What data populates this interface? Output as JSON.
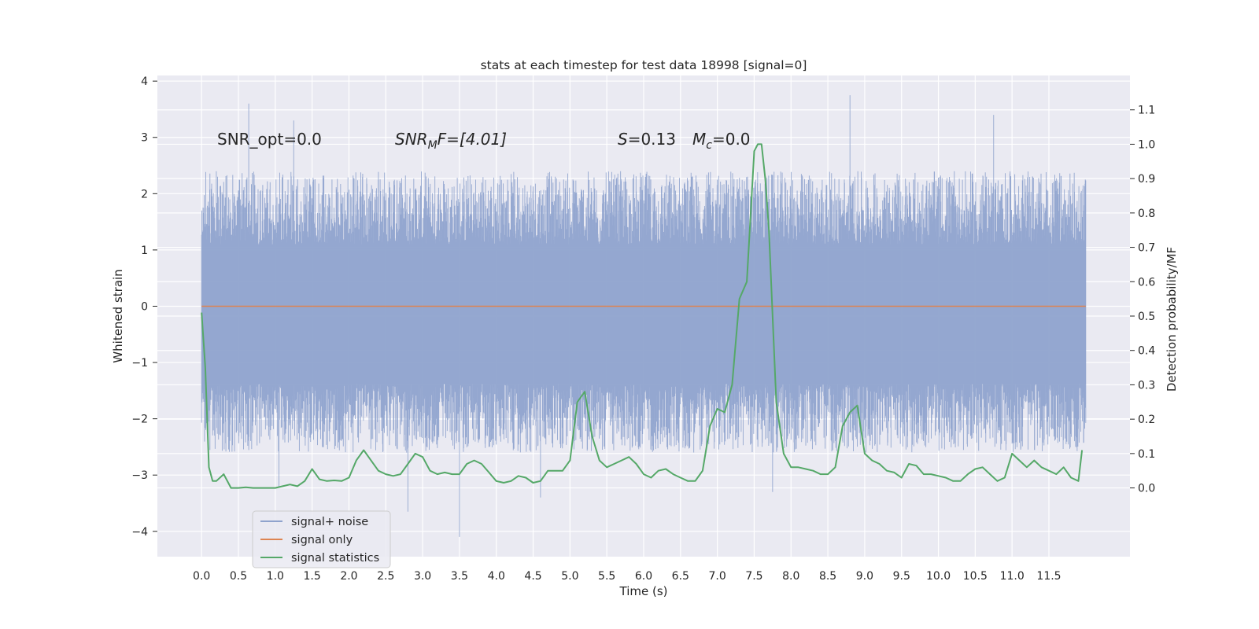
{
  "chart_data": {
    "type": "line",
    "title": "stats at each timestep for test data 18998 [signal=0]",
    "xlabel": "Time (s)",
    "ylabel": "Whitened strain",
    "y2label": "Detection probability/MF",
    "xlim": [
      -0.6,
      12.6
    ],
    "ylim": [
      -4.45,
      4.1
    ],
    "y2lim": [
      -0.2,
      1.2
    ],
    "grid": true,
    "legend_position": "lower-left",
    "x_ticks": [
      "0.0",
      "0.5",
      "1.0",
      "1.5",
      "2.0",
      "2.5",
      "3.0",
      "3.5",
      "4.0",
      "4.5",
      "5.0",
      "5.5",
      "6.0",
      "6.5",
      "7.0",
      "7.5",
      "8.0",
      "8.5",
      "9.0",
      "9.5",
      "10.0",
      "10.5",
      "11.0",
      "11.5"
    ],
    "y_ticks": [
      "4",
      "3",
      "2",
      "1",
      "0",
      "−1",
      "−2",
      "−3",
      "−4"
    ],
    "y2_ticks": [
      "1.1",
      "1.0",
      "0.9",
      "0.8",
      "0.7",
      "0.6",
      "0.5",
      "0.4",
      "0.3",
      "0.2",
      "0.1",
      "0.0"
    ],
    "annotations": {
      "snr_opt": "SNR_opt=0.0",
      "snr_mf_main": "SNR",
      "snr_mf_sub": "M",
      "snr_mf_rest": "F=[4.01]",
      "s_main": "S",
      "s_rest": "=0.13",
      "mc_main": "M",
      "mc_sub": "c",
      "mc_rest": "=0.0"
    },
    "series": [
      {
        "name": "signal+ noise",
        "color": "#8fa3cd",
        "axis": "left",
        "x_range": [
          0.0,
          12.0
        ],
        "envelope": {
          "core_min": -1.38,
          "core_max": 1.1,
          "typical_min": -2.6,
          "typical_max": 2.4
        },
        "peaks": [
          [
            0.64,
            3.6
          ],
          [
            1.25,
            3.3
          ],
          [
            2.8,
            -3.65
          ],
          [
            3.5,
            -4.1
          ],
          [
            8.8,
            3.75
          ],
          [
            7.75,
            -3.3
          ],
          [
            10.75,
            3.4
          ],
          [
            4.6,
            -3.4
          ],
          [
            1.05,
            -3.2
          ]
        ]
      },
      {
        "name": "signal only",
        "color": "#dd8452",
        "axis": "left",
        "x": [
          0.0,
          12.0
        ],
        "y": [
          0.0,
          0.0
        ]
      },
      {
        "name": "signal statistics",
        "color": "#55a868",
        "axis": "right",
        "x": [
          0.0,
          0.05,
          0.1,
          0.15,
          0.2,
          0.3,
          0.4,
          0.5,
          0.6,
          0.7,
          0.8,
          0.9,
          1.0,
          1.1,
          1.2,
          1.3,
          1.4,
          1.5,
          1.6,
          1.7,
          1.8,
          1.9,
          2.0,
          2.1,
          2.2,
          2.3,
          2.4,
          2.5,
          2.6,
          2.7,
          2.8,
          2.9,
          3.0,
          3.1,
          3.2,
          3.3,
          3.4,
          3.5,
          3.6,
          3.7,
          3.8,
          3.9,
          4.0,
          4.1,
          4.2,
          4.3,
          4.4,
          4.5,
          4.6,
          4.7,
          4.8,
          4.9,
          5.0,
          5.1,
          5.2,
          5.3,
          5.4,
          5.5,
          5.6,
          5.7,
          5.8,
          5.9,
          6.0,
          6.1,
          6.2,
          6.3,
          6.4,
          6.5,
          6.6,
          6.7,
          6.8,
          6.9,
          7.0,
          7.1,
          7.2,
          7.3,
          7.4,
          7.5,
          7.55,
          7.6,
          7.65,
          7.7,
          7.8,
          7.9,
          8.0,
          8.1,
          8.2,
          8.3,
          8.4,
          8.5,
          8.6,
          8.7,
          8.8,
          8.9,
          9.0,
          9.1,
          9.2,
          9.3,
          9.4,
          9.5,
          9.6,
          9.7,
          9.8,
          9.9,
          10.0,
          10.1,
          10.2,
          10.3,
          10.4,
          10.5,
          10.6,
          10.7,
          10.8,
          10.9,
          11.0,
          11.1,
          11.2,
          11.3,
          11.4,
          11.5,
          11.6,
          11.7,
          11.8,
          11.9,
          11.95
        ],
        "y": [
          0.51,
          0.35,
          0.06,
          0.02,
          0.02,
          0.04,
          0.0,
          0.0,
          0.002,
          0.0,
          0.0,
          0.0,
          0.0,
          0.005,
          0.01,
          0.005,
          0.02,
          0.055,
          0.025,
          0.02,
          0.022,
          0.02,
          0.03,
          0.08,
          0.11,
          0.08,
          0.05,
          0.04,
          0.035,
          0.04,
          0.07,
          0.1,
          0.09,
          0.05,
          0.04,
          0.045,
          0.04,
          0.04,
          0.07,
          0.08,
          0.07,
          0.045,
          0.02,
          0.015,
          0.02,
          0.035,
          0.03,
          0.015,
          0.02,
          0.05,
          0.05,
          0.05,
          0.08,
          0.25,
          0.28,
          0.15,
          0.08,
          0.06,
          0.07,
          0.08,
          0.09,
          0.07,
          0.04,
          0.03,
          0.05,
          0.055,
          0.04,
          0.03,
          0.02,
          0.02,
          0.05,
          0.18,
          0.23,
          0.22,
          0.3,
          0.55,
          0.6,
          0.98,
          1.0,
          1.0,
          0.9,
          0.75,
          0.25,
          0.1,
          0.06,
          0.06,
          0.055,
          0.05,
          0.04,
          0.04,
          0.06,
          0.18,
          0.22,
          0.24,
          0.1,
          0.08,
          0.07,
          0.05,
          0.045,
          0.03,
          0.07,
          0.065,
          0.04,
          0.04,
          0.035,
          0.03,
          0.02,
          0.02,
          0.04,
          0.055,
          0.06,
          0.04,
          0.02,
          0.03,
          0.1,
          0.08,
          0.06,
          0.08,
          0.06,
          0.05,
          0.04,
          0.06,
          0.03,
          0.02,
          0.11
        ]
      }
    ]
  }
}
